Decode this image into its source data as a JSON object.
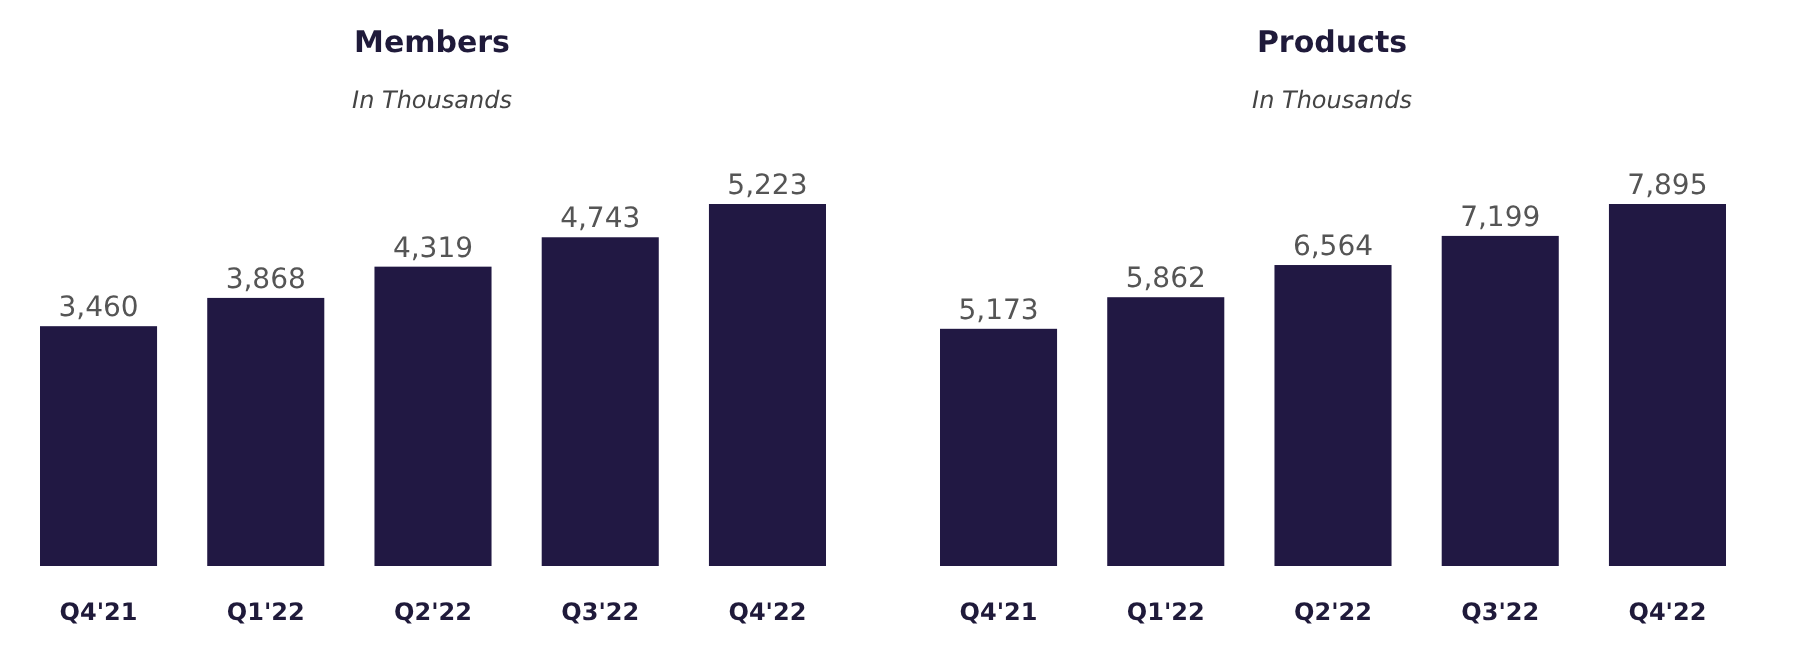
{
  "chart_data": [
    {
      "type": "bar",
      "title": "Members",
      "subtitle": "In Thousands",
      "categories": [
        "Q4'21",
        "Q1'22",
        "Q2'22",
        "Q3'22",
        "Q4'22"
      ],
      "values": [
        3460,
        3868,
        4319,
        4743,
        5223
      ],
      "value_labels": [
        "3,460",
        "3,868",
        "4,319",
        "4,743",
        "5,223"
      ],
      "color": "#211843"
    },
    {
      "type": "bar",
      "title": "Products",
      "subtitle": "In Thousands",
      "categories": [
        "Q4'21",
        "Q1'22",
        "Q2'22",
        "Q3'22",
        "Q4'22"
      ],
      "values": [
        5173,
        5862,
        6564,
        7199,
        7895
      ],
      "value_labels": [
        "5,173",
        "5,862",
        "6,564",
        "7,199",
        "7,895"
      ],
      "color": "#211843"
    }
  ]
}
